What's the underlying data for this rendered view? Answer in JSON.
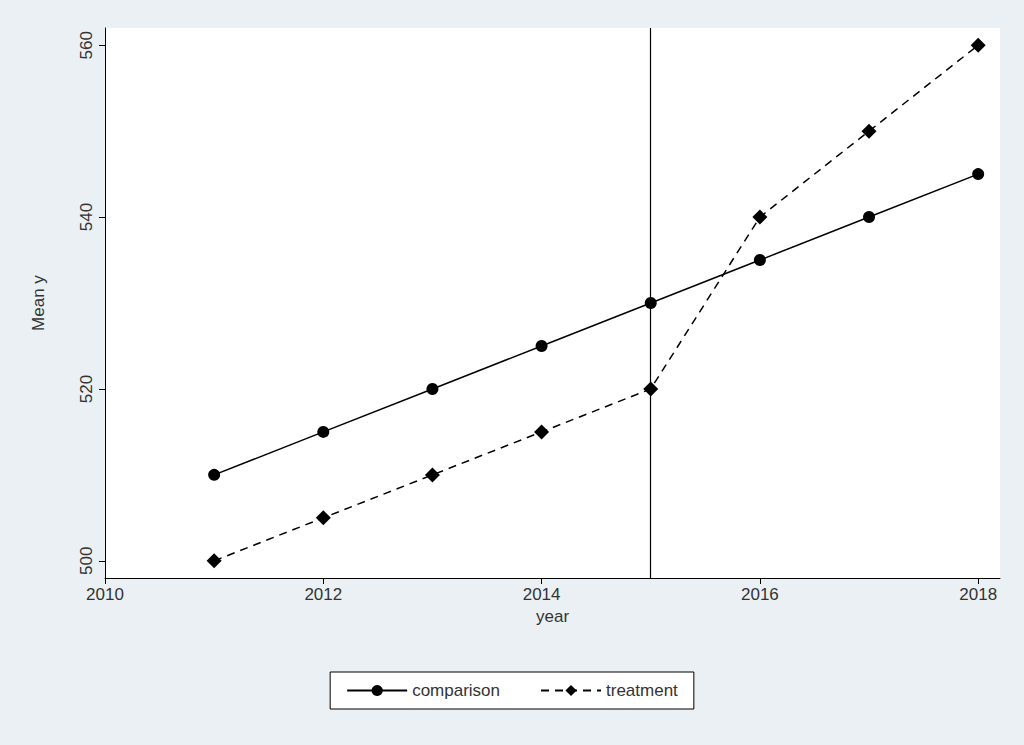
{
  "chart_data": {
    "type": "line",
    "x_label": "year",
    "y_label": "Mean y",
    "x": [
      2011,
      2012,
      2013,
      2014,
      2015,
      2016,
      2017,
      2018
    ],
    "series": [
      {
        "name": "comparison",
        "color": "#000000",
        "marker": "circle",
        "line_style": "solid",
        "values": [
          510,
          515,
          520,
          525,
          530,
          535,
          540,
          545
        ]
      },
      {
        "name": "treatment",
        "color": "#000000",
        "marker": "diamond",
        "line_style": "dashed",
        "values": [
          500,
          505,
          510,
          515,
          520,
          540,
          550,
          560
        ]
      }
    ],
    "xlim": [
      2010,
      2018.2
    ],
    "xticks": [
      2010,
      2012,
      2014,
      2016,
      2018
    ],
    "ylim": [
      498,
      562
    ],
    "yticks": [
      500,
      520,
      540,
      560
    ],
    "vlines": [
      2015
    ],
    "grid": false,
    "legend": "bottom"
  }
}
